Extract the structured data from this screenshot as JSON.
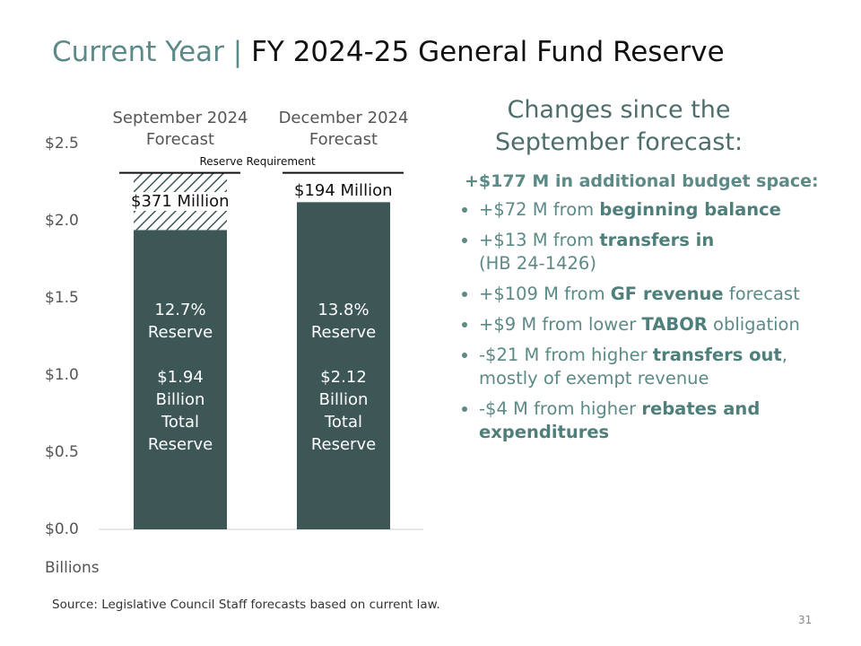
{
  "title": {
    "lead": "Current Year | ",
    "main": "FY 2024-25 General Fund Reserve"
  },
  "chart_data": {
    "type": "stacked_bar",
    "categories": [
      "September 2024 Forecast",
      "December 2024 Forecast"
    ],
    "series": [
      {
        "color": "#3d5656",
        "values": [
          1.94,
          2.12
        ],
        "value_labels": [
          "$1.94 Billion Total Reserve",
          "$2.12 Billion Total Reserve"
        ],
        "pct_labels": [
          "12.7% Reserve",
          "13.8% Reserve"
        ],
        "fills": [
          "solid",
          "solid"
        ]
      },
      {
        "color": "#3d5656",
        "values": [
          0.371,
          0.194
        ],
        "value_labels": [
          "$371 Million",
          "$194 Million"
        ],
        "fills": [
          "hatch",
          "none"
        ]
      }
    ],
    "reserve_requirement": {
      "label": "Reserve Requirement",
      "value": 2.31
    },
    "ylim": [
      0,
      2.5
    ],
    "yticks": [
      {
        "value": 0,
        "label": "$0.0"
      },
      {
        "value": 0.5,
        "label": "$0.5"
      },
      {
        "value": 1,
        "label": "$1.0"
      },
      {
        "value": 1.5,
        "label": "$1.5"
      },
      {
        "value": 2,
        "label": "$2.0"
      },
      {
        "value": 2.5,
        "label": "$2.5"
      }
    ],
    "y_unit_label": "Billions"
  },
  "panel": {
    "heading": "Changes since the September forecast:",
    "summary": "+$177 M in additional budget space:",
    "bullets": [
      [
        {
          "text": "+$72 M from "
        },
        {
          "text": "beginning balance",
          "bold": true
        }
      ],
      [
        {
          "text": "+$13 M from "
        },
        {
          "text": "transfers in",
          "bold": true
        },
        {
          "text": "(HB 24-1426)",
          "break": true
        }
      ],
      [
        {
          "text": "+$109 M from "
        },
        {
          "text": "GF revenue",
          "bold": true
        },
        {
          "text": " forecast"
        }
      ],
      [
        {
          "text": "+$9 M from lower "
        },
        {
          "text": "TABOR",
          "bold": true
        },
        {
          "text": " obligation"
        }
      ],
      [
        {
          "text": "-$21 M from higher "
        },
        {
          "text": "transfers out",
          "bold": true
        },
        {
          "text": ", mostly of exempt revenue"
        }
      ],
      [
        {
          "text": "-$4 M from higher "
        },
        {
          "text": "rebates and expenditures",
          "bold": true
        }
      ]
    ]
  },
  "source": "Source: Legislative Council Staff forecasts based on current law.",
  "page_number": "31"
}
